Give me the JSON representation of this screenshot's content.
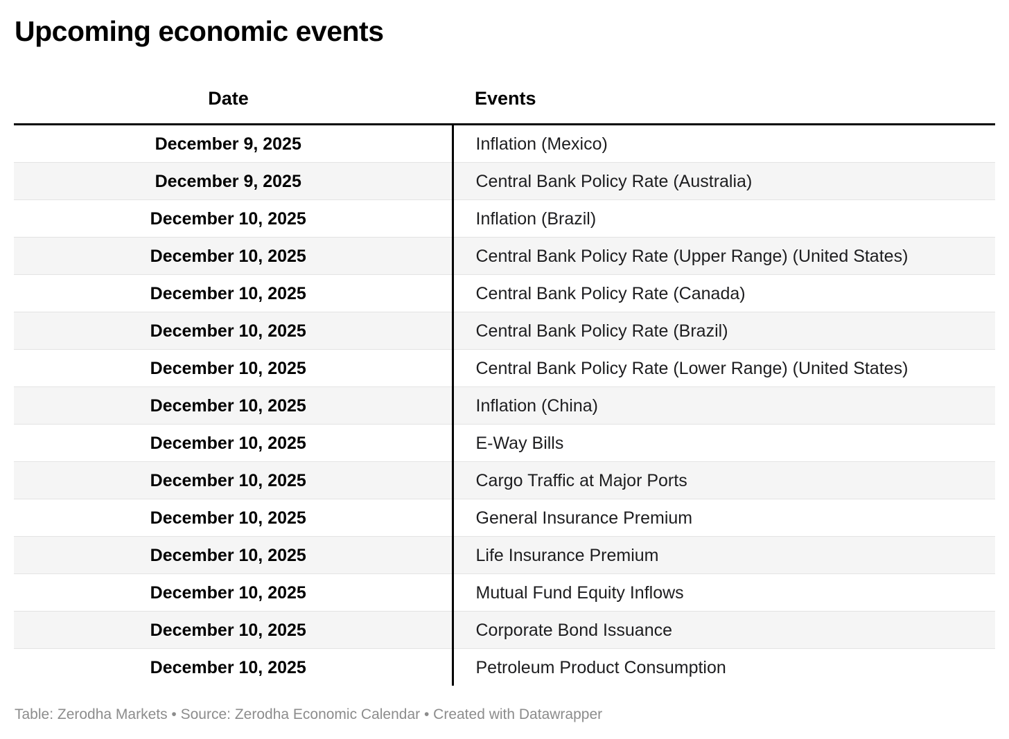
{
  "title": "Upcoming economic events",
  "chart_data": {
    "type": "table",
    "title": "Upcoming economic events",
    "columns": [
      "Date",
      "Events"
    ],
    "rows": [
      [
        "December 9, 2025",
        "Inflation (Mexico)"
      ],
      [
        "December 9, 2025",
        "Central Bank Policy Rate (Australia)"
      ],
      [
        "December 10, 2025",
        "Inflation (Brazil)"
      ],
      [
        "December 10, 2025",
        "Central Bank Policy Rate (Upper Range) (United States)"
      ],
      [
        "December 10, 2025",
        "Central Bank Policy Rate (Canada)"
      ],
      [
        "December 10, 2025",
        "Central Bank Policy Rate (Brazil)"
      ],
      [
        "December 10, 2025",
        "Central Bank Policy Rate (Lower Range) (United States)"
      ],
      [
        "December 10, 2025",
        "Inflation (China)"
      ],
      [
        "December 10, 2025",
        "E-Way Bills"
      ],
      [
        "December 10, 2025",
        "Cargo Traffic at Major Ports"
      ],
      [
        "December 10, 2025",
        "General Insurance Premium"
      ],
      [
        "December 10, 2025",
        "Life Insurance Premium"
      ],
      [
        "December 10, 2025",
        "Mutual Fund Equity Inflows"
      ],
      [
        "December 10, 2025",
        "Corporate Bond Issuance"
      ],
      [
        "December 10, 2025",
        "Petroleum Product Consumption"
      ]
    ],
    "layout": {
      "date_column_alignment": "center",
      "events_column_alignment": "left",
      "striped_rows": true
    }
  },
  "footer": {
    "text": "Table: Zerodha Markets • Source: Zerodha Economic Calendar • Created with Datawrapper"
  },
  "colors": {
    "header_border": "#000000",
    "column_divider": "#000000",
    "row_stripe": "#f5f5f5",
    "row_separator": "#e3e3e3",
    "body_text": "#1d1d1f",
    "footer_text": "#8c8c8c"
  }
}
